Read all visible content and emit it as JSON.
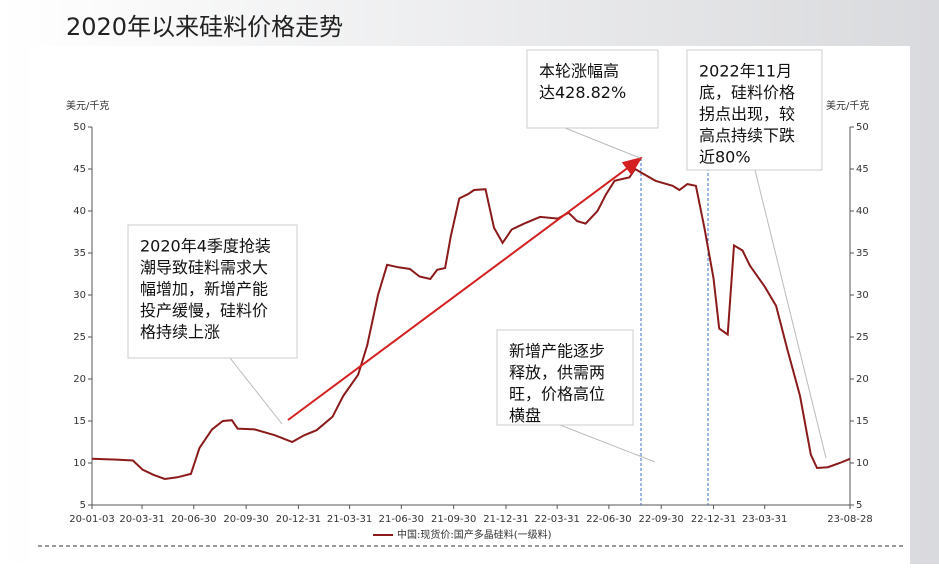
{
  "chart_data": {
    "type": "line",
    "title": "2020年以来硅料价格走势",
    "ylabel": "美元/千克",
    "ylim": [
      5,
      50
    ],
    "yticks": [
      5,
      10,
      15,
      20,
      25,
      30,
      35,
      40,
      45,
      50
    ],
    "xlim": [
      "20-01-03",
      "23-08-28"
    ],
    "xticks": [
      "20-01-03",
      "20-03-31",
      "20-06-30",
      "20-09-30",
      "20-12-31",
      "21-03-31",
      "21-06-30",
      "21-09-30",
      "21-12-31",
      "22-03-31",
      "22-06-30",
      "22-09-30",
      "22-12-31",
      "23-03-31",
      "23-08-28"
    ],
    "x": [
      "20-01-03",
      "20-02-15",
      "20-03-15",
      "20-04-01",
      "20-04-20",
      "20-05-10",
      "20-06-01",
      "20-06-25",
      "20-07-10",
      "20-08-01",
      "20-08-20",
      "20-09-05",
      "20-09-15",
      "20-10-15",
      "20-11-20",
      "20-12-20",
      "21-01-10",
      "21-02-01",
      "21-03-01",
      "21-03-20",
      "21-04-15",
      "21-05-01",
      "21-05-20",
      "21-06-05",
      "21-06-25",
      "21-07-15",
      "21-08-01",
      "21-08-20",
      "21-09-01",
      "21-09-15",
      "21-09-25",
      "21-10-10",
      "21-10-25",
      "21-11-05",
      "21-11-25",
      "21-12-10",
      "21-12-25",
      "22-01-10",
      "22-02-01",
      "22-03-01",
      "22-04-01",
      "22-04-20",
      "22-05-05",
      "22-05-20",
      "22-06-10",
      "22-06-25",
      "22-07-10",
      "22-08-05",
      "22-08-15",
      "22-08-30",
      "22-09-20",
      "22-10-20",
      "22-11-01",
      "22-11-15",
      "22-11-30",
      "22-12-15",
      "22-12-31",
      "23-01-10",
      "23-01-25",
      "23-02-05",
      "23-02-20",
      "23-03-05",
      "23-03-31",
      "23-04-20",
      "23-05-10",
      "23-06-01",
      "23-06-20",
      "23-07-01",
      "23-07-20",
      "23-08-10",
      "23-08-28"
    ],
    "series": [
      {
        "name": "中国:现货价:国产多晶硅料(一级料)",
        "color": "#8b1a1a",
        "values": [
          10.5,
          10.4,
          10.3,
          9.2,
          8.6,
          8.1,
          8.3,
          8.7,
          11.8,
          14.0,
          15.0,
          15.1,
          14.1,
          14.0,
          13.3,
          12.5,
          13.3,
          13.9,
          15.5,
          18.0,
          20.5,
          24.0,
          30.0,
          33.6,
          33.3,
          33.1,
          32.2,
          31.9,
          33.0,
          33.2,
          37.0,
          41.5,
          42.0,
          42.5,
          42.6,
          38.0,
          36.2,
          37.8,
          38.5,
          39.3,
          39.1,
          39.8,
          38.8,
          38.5,
          40.0,
          42.0,
          43.6,
          44.0,
          45.0,
          44.4,
          43.6,
          43.0,
          42.5,
          43.2,
          43.0,
          38.0,
          32.0,
          26.0,
          25.3,
          35.9,
          35.3,
          33.5,
          31.0,
          28.7,
          23.5,
          18.0,
          11.0,
          9.4,
          9.5,
          10.0,
          10.5
        ]
      }
    ],
    "annotations": [
      {
        "lines": [
          "2020年4季度抢装",
          "潮导致硅料需求大",
          "幅增加，新增产能",
          "投产缓慢，硅料价",
          "格持续上涨"
        ]
      },
      {
        "lines": [
          "本轮涨幅高",
          "达428.82%"
        ]
      },
      {
        "lines": [
          "2022年11月",
          "底，硅料价格",
          "拐点出现，较",
          "高点持续下跌",
          "近80%"
        ]
      },
      {
        "lines": [
          "新增产能逐步",
          "释放，供需两",
          "旺，价格高位",
          "横盘"
        ]
      }
    ]
  }
}
